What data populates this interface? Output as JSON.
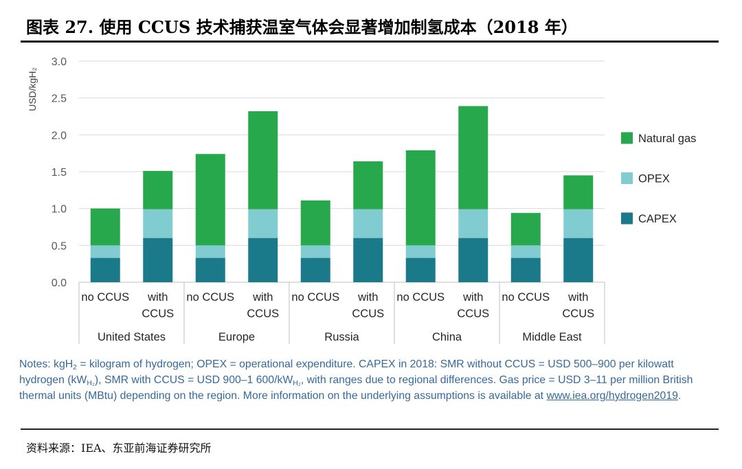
{
  "header": {
    "title": "图表 27. 使用 CCUS 技术捕获温室气体会显著增加制氢成本（2018 年）"
  },
  "chart_data": {
    "type": "bar",
    "stacked": true,
    "ylabel": "USD/kgH₂",
    "ylim": [
      0,
      3
    ],
    "yticks": [
      "0.0",
      "0.5",
      "1.0",
      "1.5",
      "2.0",
      "2.5",
      "3.0"
    ],
    "grid": true,
    "legend_position": "right",
    "groups": [
      {
        "name": "United States",
        "categories": [
          "no CCUS",
          "with CCUS"
        ]
      },
      {
        "name": "Europe",
        "categories": [
          "no CCUS",
          "with CCUS"
        ]
      },
      {
        "name": "Russia",
        "categories": [
          "no CCUS",
          "with CCUS"
        ]
      },
      {
        "name": "China",
        "categories": [
          "no CCUS",
          "with CCUS"
        ]
      },
      {
        "name": "Middle East",
        "categories": [
          "no CCUS",
          "with CCUS"
        ]
      }
    ],
    "series": [
      {
        "name": "CAPEX",
        "color": "#1a7a8a",
        "values": [
          0.33,
          0.6,
          0.33,
          0.6,
          0.33,
          0.6,
          0.33,
          0.6,
          0.33,
          0.6
        ]
      },
      {
        "name": "OPEX",
        "color": "#80ccd1",
        "values": [
          0.17,
          0.39,
          0.17,
          0.39,
          0.17,
          0.39,
          0.17,
          0.39,
          0.17,
          0.39
        ]
      },
      {
        "name": "Natural gas",
        "color": "#27a84c",
        "values": [
          0.5,
          0.52,
          1.24,
          1.33,
          0.61,
          0.65,
          1.29,
          1.4,
          0.44,
          0.46
        ]
      }
    ]
  },
  "notes": {
    "lead": "Notes: kgH",
    "sub_kgh2": "2",
    "text_1": " = kilogram of hydrogen; OPEX = operational expenditure. CAPEX in 2018: SMR without CCUS = USD 500–900 per kilowatt hydrogen (kW",
    "sub_kwh2_1": "H₂",
    "text_2": "), SMR with CCUS = USD 900–1 600/kW",
    "sub_kwh2_2": "H₂",
    "text_3": ", with ranges due to regional differences. Gas price = USD 3–11 per million British thermal units (MBtu) depending on the region. More information on the underlying assumptions is available at ",
    "link": "www.iea.org/hydrogen2019",
    "end": "."
  },
  "source": "资料来源：IEA、东亚前海证券研究所"
}
